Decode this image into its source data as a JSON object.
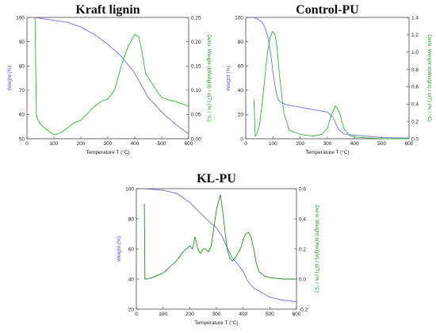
{
  "chart_data": [
    {
      "type": "line",
      "title": "Kraft lignin",
      "xlabel": "Temperature T (°C)",
      "ylabel": "Weight (%)",
      "y2label": "Deriv. Weight d(Weight) / d(T) (% / °C)",
      "xlim": [
        0,
        600
      ],
      "ylim": [
        50,
        100
      ],
      "y2lim": [
        0,
        0.25
      ],
      "xticks": [
        "0",
        "100",
        "200",
        "300",
        "400",
        "500",
        "600"
      ],
      "yticks": [
        "50",
        "60",
        "70",
        "80",
        "90",
        "100"
      ],
      "y2ticks": [
        "0.00",
        "0.05",
        "0.10",
        "0.15",
        "0.20",
        "0.25"
      ],
      "grid": false,
      "series": [
        {
          "axis": "left",
          "color": "#6f6fd8",
          "x": [
            30,
            100,
            150,
            200,
            250,
            300,
            350,
            400,
            450,
            500,
            550,
            600
          ],
          "y": [
            100,
            98.8,
            98,
            96,
            93,
            89,
            84,
            77,
            67,
            61,
            56,
            52
          ]
        },
        {
          "axis": "right",
          "color": "#2db62d",
          "x": [
            30,
            35,
            40,
            50,
            75,
            100,
            125,
            150,
            175,
            200,
            225,
            250,
            275,
            300,
            325,
            350,
            375,
            400,
            415,
            425,
            440,
            460,
            480,
            500,
            525,
            550,
            575,
            600
          ],
          "y": [
            0.25,
            0.05,
            0.04,
            0.03,
            0.018,
            0.008,
            0.012,
            0.022,
            0.033,
            0.038,
            0.052,
            0.067,
            0.077,
            0.082,
            0.1,
            0.15,
            0.19,
            0.215,
            0.21,
            0.185,
            0.135,
            0.118,
            0.1,
            0.085,
            0.08,
            0.077,
            0.072,
            0.067
          ]
        }
      ]
    },
    {
      "type": "line",
      "title": "Control-PU",
      "xlabel": "Temperature T (°C)",
      "ylabel": "Weight (%)",
      "y2label": "Deriv. Weight d(Weight) / d(T) (% / °C)",
      "xlim": [
        0,
        600
      ],
      "ylim": [
        0,
        100
      ],
      "y2lim": [
        0,
        1.4
      ],
      "xticks": [
        "0",
        "100",
        "200",
        "300",
        "400",
        "500",
        "600"
      ],
      "yticks": [
        "0",
        "20",
        "40",
        "60",
        "80",
        "100"
      ],
      "y2ticks": [
        "0.0",
        "0.2",
        "0.4",
        "0.6",
        "0.8",
        "1.0",
        "1.2",
        "1.4"
      ],
      "grid": false,
      "series": [
        {
          "axis": "left",
          "color": "#6f6fd8",
          "x": [
            30,
            50,
            60,
            70,
            80,
            90,
            100,
            110,
            120,
            130,
            150,
            200,
            250,
            300,
            320,
            340,
            360,
            400,
            450,
            500,
            600
          ],
          "y": [
            100,
            98,
            96,
            92,
            85,
            73,
            55,
            40,
            32,
            30,
            28,
            26,
            24,
            22,
            18,
            8,
            4,
            3,
            2,
            1,
            0.5
          ]
        },
        {
          "axis": "right",
          "color": "#2db62d",
          "x": [
            30,
            35,
            40,
            50,
            60,
            70,
            80,
            90,
            100,
            108,
            115,
            125,
            140,
            160,
            200,
            250,
            280,
            300,
            315,
            330,
            345,
            360,
            380,
            400,
            450,
            500,
            600
          ],
          "y": [
            0.45,
            0.03,
            0.05,
            0.15,
            0.4,
            0.7,
            1.0,
            1.18,
            1.24,
            1.2,
            1.05,
            0.7,
            0.3,
            0.1,
            0.05,
            0.03,
            0.05,
            0.12,
            0.28,
            0.38,
            0.3,
            0.12,
            0.04,
            0.02,
            0.01,
            0.0,
            0.0
          ]
        }
      ]
    },
    {
      "type": "line",
      "title": "KL-PU",
      "xlabel": "Temperature T (°C)",
      "ylabel": "Weight (%)",
      "y2label": "Deriv. Weight d(Weight) / d(T) (% / °C)",
      "xlim": [
        0,
        600
      ],
      "ylim": [
        20,
        100
      ],
      "y2lim": [
        -0.2,
        0.6
      ],
      "xticks": [
        "0",
        "100",
        "200",
        "300",
        "400",
        "500",
        "600"
      ],
      "yticks": [
        "20",
        "40",
        "60",
        "80",
        "100"
      ],
      "y2ticks": [
        "-0.2",
        "0.0",
        "0.2",
        "0.4",
        "0.6"
      ],
      "grid": false,
      "series": [
        {
          "axis": "left",
          "color": "#6f6fd8",
          "x": [
            30,
            60,
            100,
            150,
            200,
            250,
            280,
            300,
            320,
            340,
            360,
            380,
            400,
            420,
            440,
            460,
            480,
            500,
            550,
            600
          ],
          "y": [
            100,
            99.5,
            99,
            97,
            91,
            82,
            77,
            74,
            69,
            61,
            54,
            50,
            45,
            38,
            34,
            32,
            30,
            28,
            26,
            25
          ]
        },
        {
          "axis": "right",
          "color": "#1e8f1e",
          "x": [
            30,
            32,
            35,
            40,
            60,
            100,
            150,
            175,
            200,
            210,
            220,
            230,
            240,
            250,
            260,
            270,
            280,
            290,
            300,
            310,
            315,
            320,
            330,
            340,
            350,
            360,
            370,
            380,
            390,
            400,
            410,
            420,
            430,
            440,
            450,
            460,
            480,
            500,
            550,
            600
          ],
          "y": [
            0.5,
            0.0,
            0.0,
            0.0,
            0.01,
            0.04,
            0.12,
            0.18,
            0.22,
            0.2,
            0.28,
            0.2,
            0.17,
            0.2,
            0.2,
            0.18,
            0.22,
            0.33,
            0.46,
            0.53,
            0.56,
            0.5,
            0.35,
            0.2,
            0.14,
            0.12,
            0.14,
            0.17,
            0.2,
            0.26,
            0.3,
            0.31,
            0.28,
            0.2,
            0.1,
            0.05,
            0.02,
            0.01,
            0.0,
            0.0
          ]
        }
      ]
    }
  ]
}
